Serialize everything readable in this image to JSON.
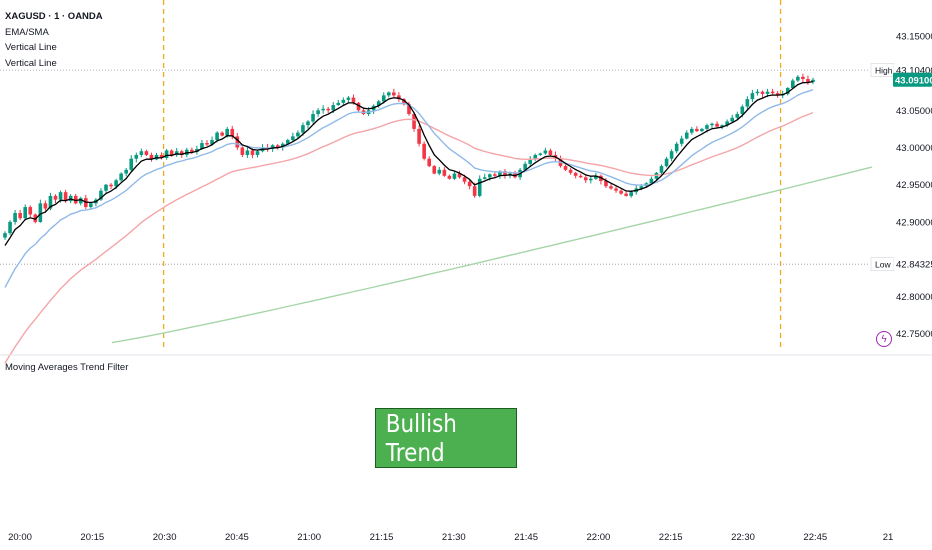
{
  "legend": {
    "symbol": "XAGUSD · 1 · OANDA",
    "indicator": "EMA/SMA",
    "line1": "Vertical Line",
    "line2": "Vertical Line"
  },
  "pane2_title": "Moving Averages Trend Filter",
  "trend_label": "Bullish Trend",
  "colors": {
    "up": "#089981",
    "down": "#f23645",
    "ema_fast": "#000000",
    "ema_mid": "#90b9e8",
    "ema_slow": "#f3a5a8",
    "sma_long": "#a5d6a7",
    "vline": "#f5a623",
    "trend_bg": "#4caf50",
    "last_price_bg": "#089981"
  },
  "icons": {
    "alert": "lightning-icon"
  },
  "chart_data": {
    "type": "candlestick",
    "y_axis_ticks": [
      "43.15000",
      "43.05000",
      "43.00000",
      "42.95000",
      "42.90000",
      "42.80000",
      "42.75000"
    ],
    "x_axis_ticks": [
      "20:00",
      "20:15",
      "20:30",
      "20:45",
      "21:00",
      "21:15",
      "21:30",
      "21:45",
      "22:00",
      "22:15",
      "22:30",
      "22:45",
      "21"
    ],
    "ylim": [
      42.728,
      43.178
    ],
    "high": {
      "label": "High",
      "value": "43.10400"
    },
    "low": {
      "label": "Low",
      "value": "42.84325"
    },
    "last_price": "43.09100",
    "vertical_lines": [
      "20:30",
      "22:38"
    ],
    "closes": [
      42.885,
      42.9,
      42.912,
      42.905,
      42.92,
      42.91,
      42.9,
      42.925,
      42.918,
      42.935,
      42.93,
      42.94,
      42.928,
      42.935,
      42.925,
      42.932,
      42.92,
      42.925,
      42.93,
      42.942,
      42.95,
      42.948,
      42.956,
      42.965,
      42.97,
      42.985,
      42.99,
      42.995,
      42.99,
      42.984,
      42.99,
      42.986,
      42.996,
      42.99,
      42.995,
      42.99,
      42.997,
      42.994,
      42.998,
      43.006,
      43.004,
      43.01,
      43.02,
      43.016,
      43.025,
      43.015,
      43.0,
      42.99,
      42.996,
      42.99,
      42.995,
      43.0,
      42.998,
      43.003,
      43.0,
      43.005,
      43.01,
      43.015,
      43.02,
      43.03,
      43.035,
      43.045,
      43.05,
      43.052,
      43.05,
      43.057,
      43.06,
      43.064,
      43.067,
      43.06,
      43.05,
      43.045,
      43.05,
      43.056,
      43.062,
      43.07,
      43.074,
      43.07,
      43.065,
      43.058,
      43.045,
      43.025,
      43.005,
      42.985,
      42.975,
      42.965,
      42.97,
      42.962,
      42.958,
      42.965,
      42.96,
      42.954,
      42.948,
      42.935,
      42.958,
      42.96,
      42.964,
      42.962,
      42.968,
      42.963,
      42.965,
      42.96,
      42.97,
      42.978,
      42.985,
      42.99,
      42.992,
      42.996,
      42.99,
      42.985,
      42.975,
      42.97,
      42.966,
      42.962,
      42.96,
      42.956,
      42.958,
      42.962,
      42.955,
      42.948,
      42.945,
      42.942,
      42.938,
      42.935,
      42.94,
      42.945,
      42.948,
      42.952,
      42.958,
      42.966,
      42.975,
      42.985,
      42.995,
      43.005,
      43.012,
      43.02,
      43.025,
      43.022,
      43.025,
      43.03,
      43.032,
      43.028,
      43.03,
      43.035,
      43.04,
      43.045,
      43.055,
      43.065,
      43.073,
      43.075,
      43.072,
      43.075,
      43.073,
      43.07,
      43.072,
      43.08,
      43.09,
      43.095,
      43.092,
      43.088,
      43.091
    ]
  }
}
